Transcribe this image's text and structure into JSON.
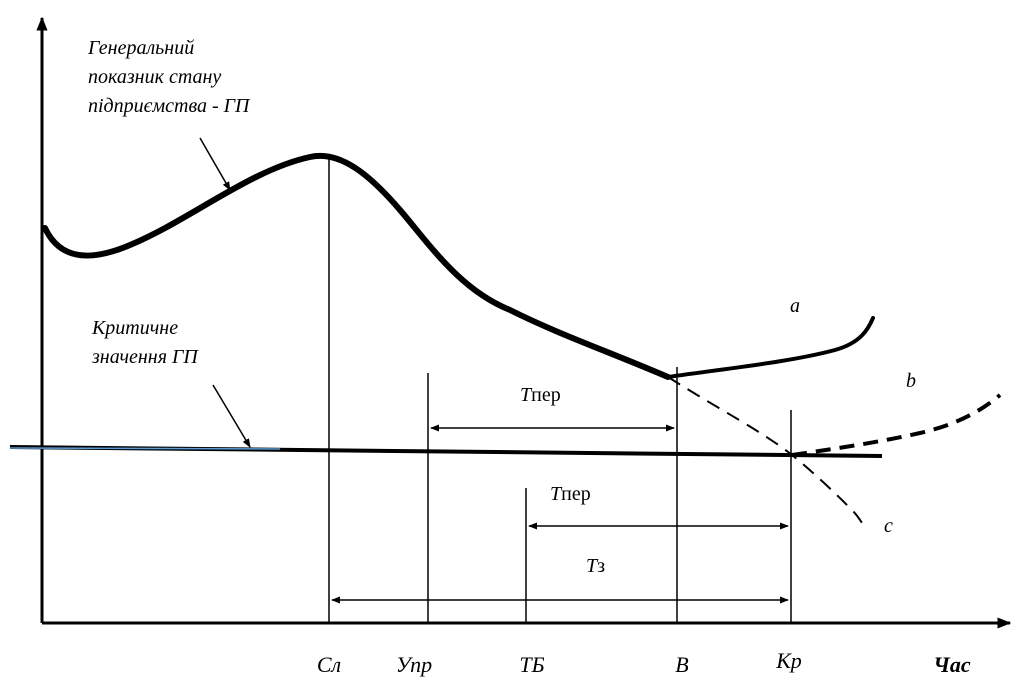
{
  "curve_label": {
    "line1": "Генеральний",
    "line2": "показник стану",
    "line3": "підприємства - ГП"
  },
  "critical_label": {
    "line1": "Критичне",
    "line2": "значення ГП"
  },
  "branches": {
    "a": "a",
    "b": "b",
    "c": "c"
  },
  "periods": {
    "t_per_1": {
      "italic": "T",
      "rest": "пер"
    },
    "t_per_2": {
      "italic": "T",
      "rest": "пер"
    },
    "t_z": {
      "italic": "T",
      "rest": "з"
    }
  },
  "x_ticks": {
    "sl": "Сл",
    "upr": "Упр",
    "tb": "ТБ",
    "v": "В",
    "kr": "Кр"
  },
  "x_axis_label": "Час",
  "colors": {
    "ink": "#000000",
    "critical_pointer": "#5b9bd5"
  }
}
